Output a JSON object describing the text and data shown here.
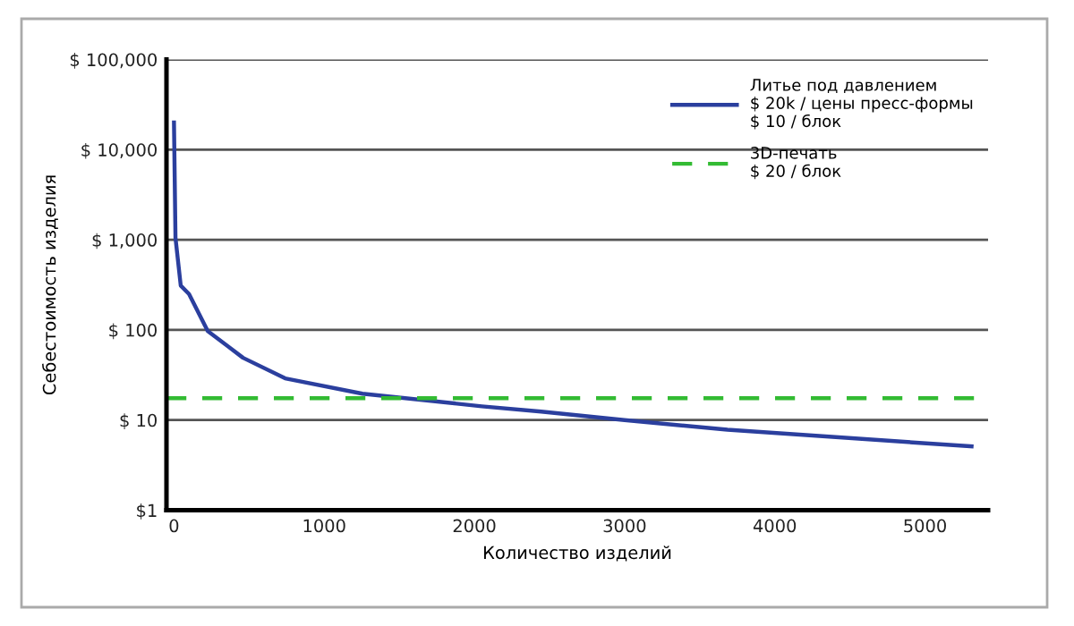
{
  "chart_data": {
    "type": "line",
    "xlabel": "Количество изделий",
    "ylabel": "Себестоимость изделия",
    "log": "y",
    "xlim": [
      -50,
      5420
    ],
    "xticks": [
      0,
      1000,
      2000,
      3000,
      4000,
      5000
    ],
    "ylim": [
      1,
      100000
    ],
    "yticks": [
      {
        "value": 1,
        "label": "$1"
      },
      {
        "value": 10,
        "label": "$ 10"
      },
      {
        "value": 100,
        "label": "$ 100"
      },
      {
        "value": 1000,
        "label": "$ 1,000"
      },
      {
        "value": 10000,
        "label": "$ 10,000"
      },
      {
        "value": 100000,
        "label": "$ 100,000"
      }
    ],
    "grid": "y",
    "legend": "top right",
    "series": [
      {
        "name": "Литье под давлением\n$ 20k / цены пресс-формы\n$ 10 / блок",
        "color": "#2b3f9e",
        "line_style": "solid",
        "x": [
          0,
          10,
          45,
          100,
          225,
          460,
          740,
          1255,
          2050,
          2445,
          3000,
          3685,
          5310
        ],
        "values": [
          20000,
          1050,
          310,
          250,
          97,
          49,
          29,
          19.6,
          14.2,
          12.4,
          10,
          7.8,
          5.1
        ]
      },
      {
        "name": "3D-печать\n$ 20 / блок",
        "color": "#33bb33",
        "line_style": "dashed",
        "x": [
          -50,
          5420
        ],
        "values": [
          17.5,
          17.5
        ]
      }
    ]
  }
}
